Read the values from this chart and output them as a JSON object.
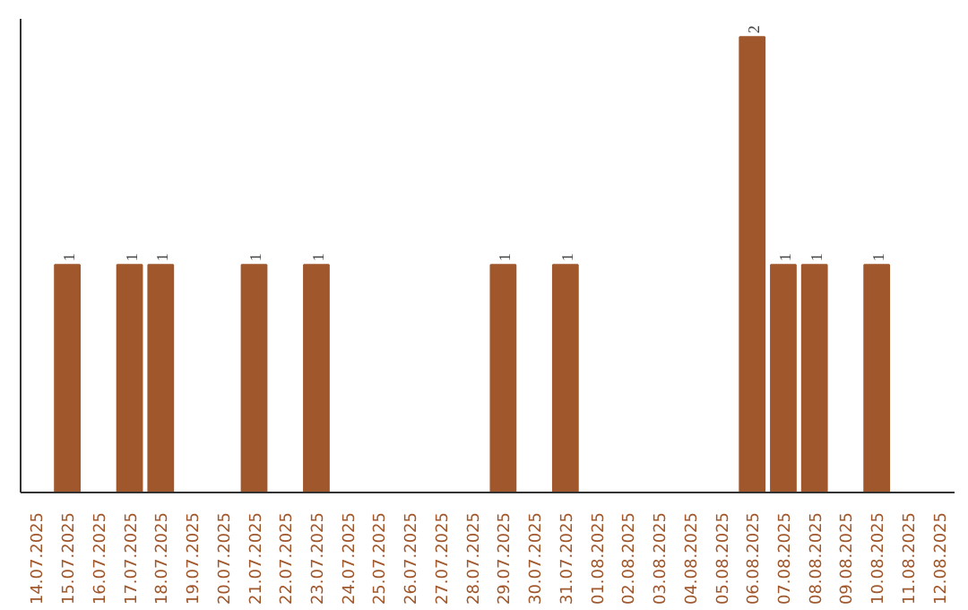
{
  "chart_data": {
    "type": "bar",
    "categories": [
      "14.07.2025",
      "15.07.2025",
      "16.07.2025",
      "17.07.2025",
      "18.07.2025",
      "19.07.2025",
      "20.07.2025",
      "21.07.2025",
      "22.07.2025",
      "23.07.2025",
      "24.07.2025",
      "25.07.2025",
      "26.07.2025",
      "27.07.2025",
      "28.07.2025",
      "29.07.2025",
      "30.07.2025",
      "31.07.2025",
      "01.08.2025",
      "02.08.2025",
      "03.08.2025",
      "04.08.2025",
      "05.08.2025",
      "06.08.2025",
      "07.08.2025",
      "08.08.2025",
      "09.08.2025",
      "10.08.2025",
      "11.08.2025",
      "12.08.2025"
    ],
    "values": [
      0,
      1,
      0,
      1,
      1,
      0,
      0,
      1,
      0,
      1,
      0,
      0,
      0,
      0,
      0,
      1,
      0,
      1,
      0,
      0,
      0,
      0,
      0,
      2,
      1,
      1,
      0,
      1,
      0,
      0
    ],
    "value_labels": [
      null,
      "1",
      null,
      "1",
      "1",
      null,
      null,
      "1",
      null,
      "1",
      null,
      null,
      null,
      null,
      null,
      "1",
      null,
      "1",
      null,
      null,
      null,
      null,
      null,
      "2",
      "1",
      "1",
      null,
      "1",
      null,
      null
    ],
    "color": "#a0572b",
    "grid": false,
    "tick_labels": "x"
  }
}
